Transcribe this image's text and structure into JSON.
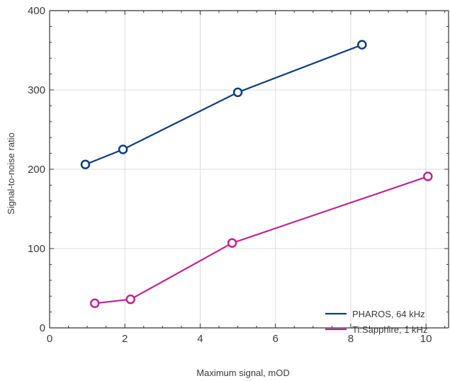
{
  "chart_data": {
    "type": "line",
    "xlabel": "Maximum signal, mOD",
    "ylabel": "Signal-to-noise ratio",
    "xlim": [
      0,
      10.6
    ],
    "ylim": [
      0,
      400
    ],
    "xticks": [
      0,
      2,
      4,
      6,
      8,
      10
    ],
    "yticks": [
      0,
      100,
      200,
      300,
      400
    ],
    "grid": true,
    "legend_position": "bottom-right",
    "series": [
      {
        "name": "PHAROS, 64 kHz",
        "color": "#0d3e7e",
        "points": [
          [
            0.95,
            206
          ],
          [
            1.95,
            225
          ],
          [
            5.0,
            297
          ],
          [
            8.3,
            357
          ]
        ]
      },
      {
        "name": "Ti:Sapphire, 1 kHz",
        "color": "#c4218f",
        "points": [
          [
            1.2,
            31
          ],
          [
            2.15,
            36
          ],
          [
            4.85,
            107
          ],
          [
            10.05,
            191
          ]
        ]
      }
    ]
  }
}
